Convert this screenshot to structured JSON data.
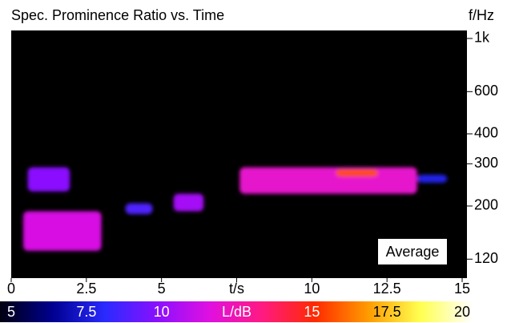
{
  "chart_data": {
    "type": "spectrogram",
    "title": "Spec. Prominence Ratio vs. Time",
    "y_label": "f/Hz",
    "annotation": "Average",
    "xlim": [
      0,
      15
    ],
    "xticks": [
      0,
      2.5,
      5,
      {
        "value": 7.5,
        "label": "t/s"
      },
      10,
      12.5,
      15
    ],
    "ylim": [
      100,
      1080
    ],
    "log_y": true,
    "yticks": [
      120,
      200,
      300,
      400,
      600,
      {
        "value": 1000,
        "label": "1k"
      }
    ],
    "clim": [
      5,
      20
    ],
    "cticks": [
      5,
      7.5,
      10,
      {
        "value": 12.5,
        "label": "L/dB"
      },
      15,
      17.5,
      20
    ],
    "colormap": [
      "#000010",
      "#000090",
      "#2a2aff",
      "#8a10ff",
      "#e010e0",
      "#ff1a80",
      "#ff2a00",
      "#ff9a00",
      "#ffff50",
      "#ffffff"
    ],
    "regions": [
      {
        "t": [
          0.55,
          1.95
        ],
        "f": [
          230,
          290
        ],
        "level": 10
      },
      {
        "t": [
          0.4,
          3.0
        ],
        "f": [
          130,
          190
        ],
        "level": 11.5
      },
      {
        "t": [
          3.8,
          4.7
        ],
        "f": [
          185,
          205
        ],
        "level": 9
      },
      {
        "t": [
          5.4,
          6.4
        ],
        "f": [
          190,
          225
        ],
        "level": 10.5
      },
      {
        "t": [
          7.6,
          13.5
        ],
        "f": [
          225,
          290
        ],
        "level": 12
      },
      {
        "t": [
          10.8,
          12.2
        ],
        "f": [
          265,
          285
        ],
        "level": 15.5
      },
      {
        "t": [
          13.5,
          14.5
        ],
        "f": [
          250,
          270
        ],
        "level": 8
      }
    ]
  }
}
